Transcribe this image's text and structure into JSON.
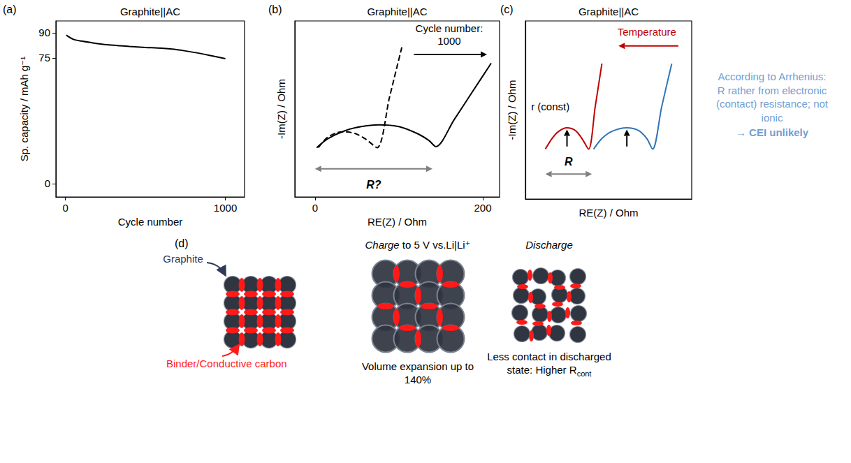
{
  "chart_data": [
    {
      "label": "(a)",
      "type": "line",
      "title": "Graphite||AC",
      "xlabel": "Cycle number",
      "ylabel": "Sp. capacity / mAh g⁻¹",
      "x": [
        5,
        50,
        100,
        200,
        300,
        400,
        500,
        600,
        700,
        800,
        900,
        1000
      ],
      "values": [
        88.5,
        86,
        85,
        83.5,
        82.5,
        81.8,
        81.2,
        80.7,
        79.8,
        78.3,
        76.5,
        74.5
      ],
      "color": "#000000",
      "line_style": "solid",
      "xlim": [
        -60,
        1120
      ],
      "xticks": [
        0,
        1000
      ],
      "ylim": [
        -8,
        97
      ],
      "yticks": [
        0,
        75,
        90
      ],
      "grid": false
    },
    {
      "label": "(b)",
      "type": "line",
      "title": "Graphite||AC",
      "xlabel": "RE(Z) / Ohm",
      "ylabel": "-Im(Z) / Ohm",
      "series": [
        {
          "x": [
            4,
            14,
            26,
            36,
            48,
            60,
            74,
            89,
            104
          ],
          "values": [
            28,
            33.5,
            36.5,
            37,
            36,
            33,
            28,
            57,
            86
          ],
          "color": "#000000",
          "line_style": "dashed"
        },
        {
          "x": [
            2,
            15,
            35,
            55,
            76,
            100,
            122,
            136,
            144,
            166,
            188,
            210
          ],
          "values": [
            28,
            33,
            37.5,
            40,
            41,
            40,
            36,
            32,
            28.6,
            44,
            60,
            76
          ],
          "color": "#000000",
          "line_style": "solid"
        }
      ],
      "xlim": [
        -24,
        220
      ],
      "xticks": [
        0,
        200
      ],
      "ylim": [
        0,
        100
      ],
      "tick_labels": "x",
      "grid": false,
      "annotations": {
        "arrow_label": [
          "Cycle number:",
          "1000"
        ],
        "range_label": "R?"
      }
    },
    {
      "label": "(c)",
      "type": "line",
      "title": "Graphite||AC",
      "xlabel": "RE(Z) / Ohm",
      "ylabel": "-Im(Z) / Ohm",
      "series": [
        {
          "x": [
            12,
            16,
            20,
            25,
            30,
            34,
            38,
            42,
            46
          ],
          "values": [
            28,
            34,
            38,
            40,
            38.5,
            34,
            28,
            52,
            76
          ],
          "color": "#c00000",
          "line_style": "solid"
        },
        {
          "x": [
            41,
            46,
            52,
            61,
            68,
            73,
            76.5,
            82,
            88
          ],
          "values": [
            28,
            34,
            38,
            40,
            38.5,
            34,
            28,
            52,
            76
          ],
          "color": "#2e75b6",
          "line_style": "solid"
        }
      ],
      "xlim": [
        0,
        100
      ],
      "ylim": [
        0,
        100
      ],
      "tick_labels": false,
      "grid": false,
      "annotations": {
        "arrow_label": "Temperature",
        "peak_label": "r (const)",
        "range_label": "R",
        "note": "According to Arrhenius: R rather from electronic (contact) resistance; not ionic",
        "conclusion": "→ CEI unlikely"
      }
    }
  ],
  "diagram": {
    "label": "(d)",
    "callouts": {
      "particle": "Graphite",
      "additive": "Binder/Conductive carbon"
    },
    "states": [
      {
        "heading": "Charge to 5 V vs.Li|Li⁺",
        "caption": "Volume expansion up to 140%"
      },
      {
        "heading": "Discharge",
        "caption": "Less contact in discharged state: Higher R",
        "caption_subscript": "cont"
      }
    ]
  }
}
